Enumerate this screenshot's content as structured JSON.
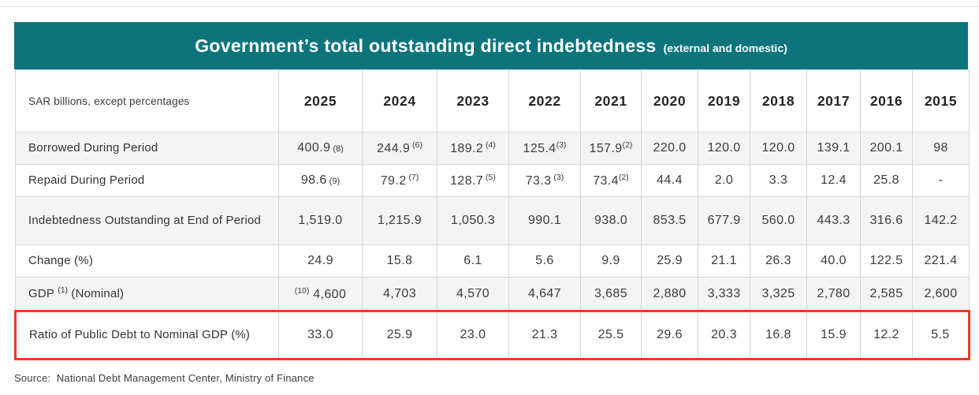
{
  "title": {
    "main": "Government’s total outstanding direct indebtedness",
    "suffix": "(external and domestic)"
  },
  "colors": {
    "banner_bg": "#0d747c",
    "highlight_border": "#ee3a24",
    "row_stripe": "#f4f4f4"
  },
  "table": {
    "unit_label": "SAR billions, except percentages",
    "years": [
      "2025",
      "2024",
      "2023",
      "2022",
      "2021",
      "2020",
      "2019",
      "2018",
      "2017",
      "2016",
      "2015"
    ],
    "rows": [
      {
        "label": "Borrowed During Period",
        "values": [
          [
            {
              "text": "400.9"
            },
            {
              "text": " (8)",
              "style": "small"
            }
          ],
          [
            {
              "text": "244.9"
            },
            {
              "text": " (6)",
              "style": "sup"
            }
          ],
          [
            {
              "text": "189.2"
            },
            {
              "text": " (4)",
              "style": "sup"
            }
          ],
          [
            {
              "text": "125.4"
            },
            {
              "text": "(3)",
              "style": "sup"
            }
          ],
          [
            {
              "text": "157.9"
            },
            {
              "text": "(2)",
              "style": "sup"
            }
          ],
          "220.0",
          "120.0",
          "120.0",
          "139.1",
          "200.1",
          "98"
        ]
      },
      {
        "label": "Repaid During Period",
        "values": [
          [
            {
              "text": "98.6"
            },
            {
              "text": " (9)",
              "style": "small"
            }
          ],
          [
            {
              "text": "79.2"
            },
            {
              "text": " (7)",
              "style": "sup"
            }
          ],
          [
            {
              "text": "128.7"
            },
            {
              "text": " (5)",
              "style": "sup"
            }
          ],
          [
            {
              "text": "73.3"
            },
            {
              "text": " (3)",
              "style": "sup"
            }
          ],
          [
            {
              "text": "73.4"
            },
            {
              "text": "(2)",
              "style": "sup"
            }
          ],
          "44.4",
          "2.0",
          "3.3",
          "12.4",
          "25.8",
          "-"
        ]
      },
      {
        "label": "Indebtedness Outstanding at End of Period",
        "values": [
          "1,519.0",
          "1,215.9",
          "1,050.3",
          "990.1",
          "938.0",
          "853.5",
          "677.9",
          "560.0",
          "443.3",
          "316.6",
          "142.2"
        ]
      },
      {
        "label": "Change (%)",
        "values": [
          "24.9",
          "15.8",
          "6.1",
          "5.6",
          "9.9",
          "25.9",
          "21.1",
          "26.3",
          "40.0",
          "122.5",
          "221.4"
        ]
      },
      {
        "label": [
          {
            "text": "GDP "
          },
          {
            "text": "(1)",
            "style": "sup"
          },
          {
            "text": " (Nominal)"
          }
        ],
        "values": [
          [
            {
              "text": "(10)",
              "style": "sup"
            },
            {
              "text": " 4,600"
            }
          ],
          "4,703",
          "4,570",
          "4,647",
          "3,685",
          "2,880",
          "3,333",
          "3,325",
          "2,780",
          "2,585",
          "2,600"
        ]
      },
      {
        "label": "Ratio of Public Debt to Nominal GDP (%)",
        "highlight": true,
        "values": [
          "33.0",
          "25.9",
          "23.0",
          "21.3",
          "25.5",
          "29.6",
          "20.3",
          "16.8",
          "15.9",
          "12.2",
          "5.5"
        ]
      }
    ]
  },
  "source": "Source:  National Debt Management Center, Ministry of Finance"
}
